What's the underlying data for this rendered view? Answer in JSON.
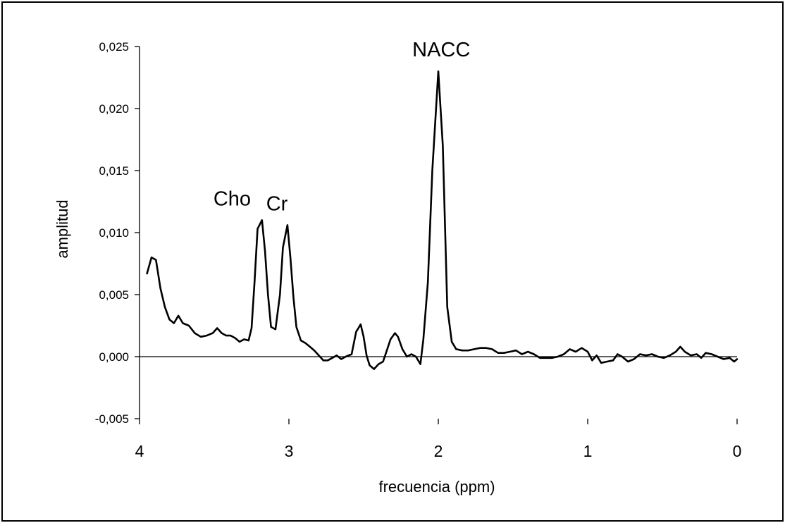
{
  "chart_data": {
    "type": "line",
    "title": "",
    "xlabel": "frecuencia (ppm)",
    "ylabel": "amplitud",
    "xlim": [
      4,
      0
    ],
    "ylim": [
      -0.005,
      0.025
    ],
    "x_reversed": true,
    "grid": false,
    "legend": "none",
    "line_color": "#000000",
    "x_ticks": [
      {
        "value": 4,
        "label": "4"
      },
      {
        "value": 3,
        "label": "3"
      },
      {
        "value": 2,
        "label": "2"
      },
      {
        "value": 1,
        "label": "1"
      },
      {
        "value": 0,
        "label": "0"
      }
    ],
    "y_ticks": [
      {
        "value": 0.025,
        "label": "0,025"
      },
      {
        "value": 0.02,
        "label": "0,020"
      },
      {
        "value": 0.015,
        "label": "0,015"
      },
      {
        "value": 0.01,
        "label": "0,010"
      },
      {
        "value": 0.005,
        "label": "0,005"
      },
      {
        "value": 0.0,
        "label": "0,000"
      },
      {
        "value": -0.005,
        "label": "-0,005"
      }
    ],
    "annotations": [
      {
        "text": "Cho",
        "x": 3.38,
        "y": 0.0122
      },
      {
        "text": "Cr",
        "x": 3.08,
        "y": 0.0118
      },
      {
        "text": "NACC",
        "x": 1.98,
        "y": 0.0242
      }
    ],
    "series": [
      {
        "values": [
          [
            3.95,
            0.0067
          ],
          [
            3.92,
            0.008
          ],
          [
            3.89,
            0.0078
          ],
          [
            3.86,
            0.0055
          ],
          [
            3.83,
            0.004
          ],
          [
            3.8,
            0.003
          ],
          [
            3.77,
            0.0027
          ],
          [
            3.74,
            0.0033
          ],
          [
            3.71,
            0.0027
          ],
          [
            3.67,
            0.0025
          ],
          [
            3.63,
            0.0019
          ],
          [
            3.59,
            0.0016
          ],
          [
            3.55,
            0.0017
          ],
          [
            3.51,
            0.0019
          ],
          [
            3.48,
            0.0023
          ],
          [
            3.45,
            0.0019
          ],
          [
            3.42,
            0.0017
          ],
          [
            3.39,
            0.0017
          ],
          [
            3.36,
            0.0015
          ],
          [
            3.33,
            0.0012
          ],
          [
            3.3,
            0.0014
          ],
          [
            3.27,
            0.0013
          ],
          [
            3.25,
            0.0023
          ],
          [
            3.23,
            0.006
          ],
          [
            3.21,
            0.0103
          ],
          [
            3.18,
            0.011
          ],
          [
            3.16,
            0.0085
          ],
          [
            3.14,
            0.005
          ],
          [
            3.12,
            0.0024
          ],
          [
            3.09,
            0.0022
          ],
          [
            3.06,
            0.005
          ],
          [
            3.04,
            0.0088
          ],
          [
            3.01,
            0.0106
          ],
          [
            2.99,
            0.008
          ],
          [
            2.97,
            0.0048
          ],
          [
            2.95,
            0.0024
          ],
          [
            2.92,
            0.0013
          ],
          [
            2.89,
            0.0011
          ],
          [
            2.86,
            0.0008
          ],
          [
            2.83,
            0.0005
          ],
          [
            2.8,
            0.0001
          ],
          [
            2.77,
            -0.0003
          ],
          [
            2.74,
            -0.0003
          ],
          [
            2.71,
            -0.0001
          ],
          [
            2.68,
            0.0001
          ],
          [
            2.65,
            -0.0002
          ],
          [
            2.62,
            0.0
          ],
          [
            2.58,
            0.0002
          ],
          [
            2.55,
            0.002
          ],
          [
            2.52,
            0.0026
          ],
          [
            2.5,
            0.0016
          ],
          [
            2.48,
            0.0001
          ],
          [
            2.46,
            -0.0007
          ],
          [
            2.43,
            -0.001
          ],
          [
            2.4,
            -0.0006
          ],
          [
            2.37,
            -0.0004
          ],
          [
            2.35,
            0.0003
          ],
          [
            2.32,
            0.0014
          ],
          [
            2.29,
            0.0019
          ],
          [
            2.27,
            0.0016
          ],
          [
            2.24,
            0.0006
          ],
          [
            2.21,
            0.0
          ],
          [
            2.18,
            0.0002
          ],
          [
            2.15,
            0.0
          ],
          [
            2.12,
            -0.0006
          ],
          [
            2.1,
            0.0014
          ],
          [
            2.07,
            0.006
          ],
          [
            2.04,
            0.015
          ],
          [
            2.0,
            0.023
          ],
          [
            1.97,
            0.017
          ],
          [
            1.94,
            0.004
          ],
          [
            1.91,
            0.0012
          ],
          [
            1.88,
            0.0006
          ],
          [
            1.84,
            0.0005
          ],
          [
            1.8,
            0.0005
          ],
          [
            1.76,
            0.0006
          ],
          [
            1.72,
            0.0007
          ],
          [
            1.68,
            0.0007
          ],
          [
            1.64,
            0.0006
          ],
          [
            1.6,
            0.0003
          ],
          [
            1.56,
            0.0003
          ],
          [
            1.52,
            0.0004
          ],
          [
            1.48,
            0.0005
          ],
          [
            1.44,
            0.0002
          ],
          [
            1.4,
            0.0004
          ],
          [
            1.36,
            0.0002
          ],
          [
            1.32,
            -0.0001
          ],
          [
            1.28,
            -0.0001
          ],
          [
            1.24,
            -0.0001
          ],
          [
            1.2,
            0.0
          ],
          [
            1.16,
            0.0002
          ],
          [
            1.12,
            0.0006
          ],
          [
            1.08,
            0.0004
          ],
          [
            1.04,
            0.0007
          ],
          [
            1.0,
            0.0004
          ],
          [
            0.97,
            -0.0003
          ],
          [
            0.94,
            0.0001
          ],
          [
            0.91,
            -0.0005
          ],
          [
            0.87,
            -0.0004
          ],
          [
            0.83,
            -0.0003
          ],
          [
            0.8,
            0.0002
          ],
          [
            0.77,
            0.0
          ],
          [
            0.73,
            -0.0004
          ],
          [
            0.69,
            -0.0002
          ],
          [
            0.65,
            0.0002
          ],
          [
            0.61,
            0.0001
          ],
          [
            0.57,
            0.0002
          ],
          [
            0.53,
            0.0
          ],
          [
            0.49,
            -0.0001
          ],
          [
            0.45,
            0.0001
          ],
          [
            0.41,
            0.0004
          ],
          [
            0.38,
            0.0008
          ],
          [
            0.35,
            0.0004
          ],
          [
            0.31,
            0.0001
          ],
          [
            0.27,
            0.0002
          ],
          [
            0.24,
            -0.0001
          ],
          [
            0.21,
            0.0003
          ],
          [
            0.17,
            0.0002
          ],
          [
            0.13,
            0.0
          ],
          [
            0.09,
            -0.0002
          ],
          [
            0.05,
            -0.0001
          ],
          [
            0.02,
            -0.0004
          ],
          [
            0.0,
            -0.0002
          ]
        ]
      }
    ]
  }
}
